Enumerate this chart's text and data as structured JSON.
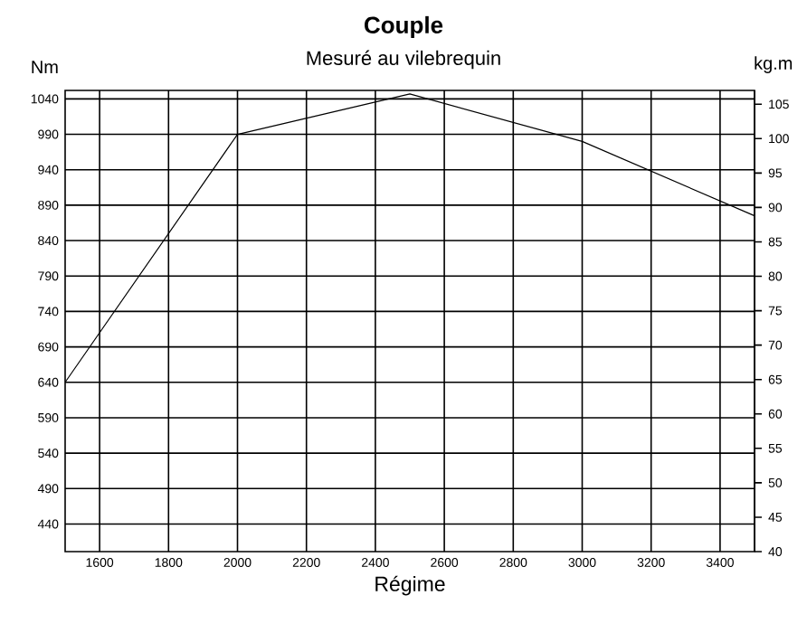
{
  "chart_data": {
    "type": "line",
    "title": "Couple",
    "subtitle": "Mesuré au vilebrequin",
    "xlabel": "Régime",
    "ylabel": "Nm",
    "y2label": "kg.m",
    "x": [
      1500,
      2000,
      2500,
      3000,
      3500
    ],
    "series": [
      {
        "color": "#000000",
        "values": [
          640,
          990,
          1047,
          980,
          875
        ]
      }
    ],
    "xlim": [
      1500,
      3500
    ],
    "xticks": [
      1600,
      1800,
      2000,
      2200,
      2400,
      2600,
      2800,
      3000,
      3200,
      3400
    ],
    "ylim": [
      401,
      1052
    ],
    "yticks": [
      440,
      490,
      540,
      590,
      640,
      690,
      740,
      790,
      840,
      890,
      940,
      990,
      1040
    ],
    "y2lim": [
      40,
      107
    ],
    "y2ticks": [
      40,
      45,
      50,
      55,
      60,
      65,
      70,
      75,
      80,
      85,
      90,
      95,
      100,
      105
    ],
    "grid": true,
    "marker": "none",
    "line_style": "solid"
  }
}
